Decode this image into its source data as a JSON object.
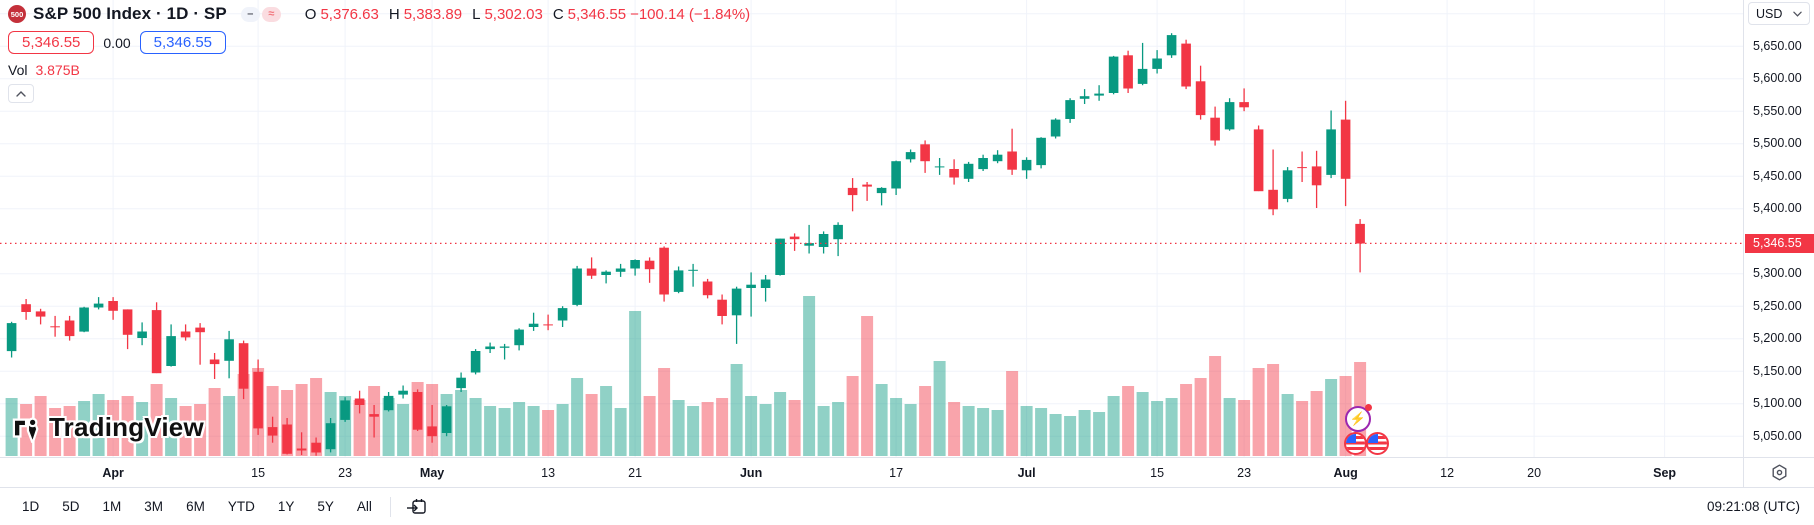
{
  "header": {
    "symbol_badge": "500",
    "title": "S&P 500 Index · 1D · SP",
    "ohlc": {
      "o_label": "O",
      "o": "5,376.63",
      "h_label": "H",
      "h": "5,383.89",
      "l_label": "L",
      "l": "5,302.03",
      "c_label": "C",
      "c": "5,346.55",
      "change": "−100.14 (−1.84%)"
    },
    "sell_price": "5,346.55",
    "spread": "0.00",
    "buy_price": "5,346.55",
    "vol_label": "Vol",
    "vol_value": "3.875B"
  },
  "price_scale": {
    "currency": "USD",
    "tag": "5,346.55"
  },
  "toolbar": {
    "ranges": [
      "1D",
      "5D",
      "1M",
      "3M",
      "6M",
      "YTD",
      "1Y",
      "5Y",
      "All"
    ],
    "clock": "09:21:08 (UTC)"
  },
  "watermark": {
    "text": "TradingView"
  },
  "colors": {
    "up": "#089981",
    "down": "#F23645",
    "vol_up": "rgba(8,153,129,0.45)",
    "vol_down": "rgba(242,54,69,0.45)",
    "grid": "#F0F3FA",
    "last_line": "#F23645",
    "accent_blue": "#2962FF",
    "accent_red": "#F23645"
  },
  "chart_data": {
    "type": "candlestick",
    "symbol": "S&P 500 Index",
    "interval": "1D",
    "exchange": "SP",
    "currency": "USD",
    "last_price": 5346.55,
    "change": -100.14,
    "change_percent": -1.84,
    "volume_label": "3.875B",
    "ylim": [
      5018,
      5721
    ],
    "grid_on": true,
    "price_axis_ticks": [
      {
        "price": 5650,
        "label": "5,650.00"
      },
      {
        "price": 5600,
        "label": "5,600.00"
      },
      {
        "price": 5550,
        "label": "5,550.00"
      },
      {
        "price": 5500,
        "label": "5,500.00"
      },
      {
        "price": 5450,
        "label": "5,450.00"
      },
      {
        "price": 5400,
        "label": "5,400.00"
      },
      {
        "price": 5300,
        "label": "5,300.00"
      },
      {
        "price": 5250,
        "label": "5,250.00"
      },
      {
        "price": 5200,
        "label": "5,200.00"
      },
      {
        "price": 5150,
        "label": "5,150.00"
      },
      {
        "price": 5100,
        "label": "5,100.00"
      },
      {
        "price": 5050,
        "label": "5,050.00"
      }
    ],
    "price_gridlines": [
      5700,
      5650,
      5600,
      5550,
      5500,
      5450,
      5400,
      5300,
      5250,
      5200,
      5150,
      5100,
      5050
    ],
    "time_ticks": [
      {
        "label": "Apr",
        "index": 7,
        "major": true
      },
      {
        "label": "15",
        "index": 17,
        "major": false
      },
      {
        "label": "23",
        "index": 23,
        "major": false
      },
      {
        "label": "May",
        "index": 29,
        "major": true
      },
      {
        "label": "13",
        "index": 37,
        "major": false
      },
      {
        "label": "21",
        "index": 43,
        "major": false
      },
      {
        "label": "Jun",
        "index": 51,
        "major": true
      },
      {
        "label": "17",
        "index": 61,
        "major": false
      },
      {
        "label": "Jul",
        "index": 70,
        "major": true
      },
      {
        "label": "15",
        "index": 79,
        "major": false
      },
      {
        "label": "23",
        "index": 85,
        "major": false
      },
      {
        "label": "Aug",
        "index": 92,
        "major": true
      },
      {
        "label": "12",
        "index": 99,
        "major": false
      },
      {
        "label": "20",
        "index": 105,
        "major": false
      },
      {
        "label": "Sep",
        "index": 114,
        "major": true
      }
    ],
    "candles": [
      [
        "03-20",
        5181,
        5226,
        5171,
        5224,
        58
      ],
      [
        "03-21",
        5253,
        5261,
        5229,
        5241,
        52
      ],
      [
        "03-22",
        5242,
        5246,
        5222,
        5234,
        60
      ],
      [
        "03-25",
        5219,
        5235,
        5203,
        5218,
        48
      ],
      [
        "03-26",
        5228,
        5235,
        5197,
        5204,
        50
      ],
      [
        "03-27",
        5211,
        5249,
        5210,
        5248,
        55
      ],
      [
        "03-28",
        5248,
        5264,
        5245,
        5254,
        62
      ],
      [
        "04-01",
        5258,
        5264,
        5229,
        5243,
        56
      ],
      [
        "04-02",
        5245,
        5245,
        5184,
        5206,
        60
      ],
      [
        "04-03",
        5201,
        5225,
        5190,
        5211,
        54
      ],
      [
        "04-04",
        5244,
        5256,
        5147,
        5147,
        72
      ],
      [
        "04-05",
        5158,
        5222,
        5157,
        5204,
        58
      ],
      [
        "04-08",
        5211,
        5222,
        5197,
        5202,
        50
      ],
      [
        "04-09",
        5217,
        5224,
        5160,
        5210,
        52
      ],
      [
        "04-10",
        5168,
        5178,
        5138,
        5161,
        68
      ],
      [
        "04-11",
        5166,
        5212,
        5139,
        5199,
        60
      ],
      [
        "04-12",
        5193,
        5197,
        5107,
        5123,
        82
      ],
      [
        "04-15",
        5149,
        5168,
        5052,
        5062,
        88
      ],
      [
        "04-16",
        5064,
        5080,
        5040,
        5051,
        70
      ],
      [
        "04-17",
        5068,
        5078,
        5022,
        5023,
        66
      ],
      [
        "04-18",
        5031,
        5056,
        5021,
        5028,
        72
      ],
      [
        "04-19",
        5040,
        5048,
        5020,
        5025,
        78
      ],
      [
        "04-22",
        5030,
        5078,
        5025,
        5070,
        64
      ],
      [
        "04-23",
        5075,
        5110,
        5072,
        5105,
        60
      ],
      [
        "04-24",
        5108,
        5120,
        5085,
        5098,
        56
      ],
      [
        "04-25",
        5084,
        5098,
        5048,
        5080,
        70
      ],
      [
        "04-26",
        5090,
        5118,
        5088,
        5112,
        58
      ],
      [
        "04-29",
        5114,
        5128,
        5108,
        5120,
        52
      ],
      [
        "04-30",
        5118,
        5122,
        5058,
        5060,
        74
      ],
      [
        "05-01",
        5065,
        5098,
        5040,
        5050,
        72
      ],
      [
        "05-02",
        5055,
        5098,
        5050,
        5096,
        62
      ],
      [
        "05-03",
        5124,
        5148,
        5118,
        5140,
        66
      ],
      [
        "05-06",
        5148,
        5184,
        5145,
        5181,
        58
      ],
      [
        "05-07",
        5184,
        5194,
        5178,
        5188,
        50
      ],
      [
        "05-08",
        5186,
        5192,
        5168,
        5188,
        48
      ],
      [
        "05-09",
        5190,
        5216,
        5182,
        5214,
        54
      ],
      [
        "05-10",
        5218,
        5240,
        5212,
        5223,
        50
      ],
      [
        "05-13",
        5222,
        5237,
        5213,
        5221,
        46
      ],
      [
        "05-14",
        5228,
        5250,
        5218,
        5247,
        52
      ],
      [
        "05-15",
        5252,
        5312,
        5250,
        5308,
        78
      ],
      [
        "05-16",
        5308,
        5325,
        5292,
        5297,
        62
      ],
      [
        "05-17",
        5298,
        5305,
        5285,
        5303,
        70
      ],
      [
        "05-20",
        5303,
        5315,
        5295,
        5308,
        48
      ],
      [
        "05-21",
        5308,
        5322,
        5297,
        5321,
        145
      ],
      [
        "05-22",
        5320,
        5325,
        5286,
        5307,
        60
      ],
      [
        "05-23",
        5340,
        5342,
        5257,
        5268,
        88
      ],
      [
        "05-24",
        5272,
        5311,
        5270,
        5305,
        56
      ],
      [
        "05-28",
        5305,
        5315,
        5280,
        5306,
        50
      ],
      [
        "05-29",
        5288,
        5292,
        5262,
        5267,
        54
      ],
      [
        "05-30",
        5260,
        5268,
        5222,
        5235,
        58
      ],
      [
        "05-31",
        5236,
        5280,
        5192,
        5277,
        92
      ],
      [
        "06-03",
        5278,
        5302,
        5234,
        5283,
        60
      ],
      [
        "06-04",
        5278,
        5298,
        5257,
        5291,
        52
      ],
      [
        "06-05",
        5298,
        5354,
        5297,
        5354,
        64
      ],
      [
        "06-06",
        5357,
        5362,
        5335,
        5353,
        56
      ],
      [
        "06-07",
        5343,
        5375,
        5331,
        5347,
        160
      ],
      [
        "06-10",
        5341,
        5365,
        5331,
        5361,
        50
      ],
      [
        "06-11",
        5353,
        5379,
        5327,
        5375,
        54
      ],
      [
        "06-12",
        5432,
        5447,
        5396,
        5421,
        80
      ],
      [
        "06-13",
        5437,
        5441,
        5412,
        5434,
        140
      ],
      [
        "06-14",
        5424,
        5433,
        5405,
        5432,
        72
      ],
      [
        "06-17",
        5431,
        5474,
        5421,
        5473,
        58
      ],
      [
        "06-18",
        5476,
        5491,
        5471,
        5487,
        52
      ],
      [
        "06-20",
        5499,
        5505,
        5455,
        5473,
        70
      ],
      [
        "06-21",
        5464,
        5478,
        5452,
        5465,
        95
      ],
      [
        "06-24",
        5461,
        5476,
        5437,
        5448,
        54
      ],
      [
        "06-25",
        5446,
        5472,
        5441,
        5469,
        50
      ],
      [
        "06-26",
        5461,
        5483,
        5458,
        5478,
        48
      ],
      [
        "06-27",
        5473,
        5490,
        5470,
        5483,
        46
      ],
      [
        "06-28",
        5488,
        5523,
        5452,
        5460,
        85
      ],
      [
        "07-01",
        5459,
        5479,
        5446,
        5475,
        50
      ],
      [
        "07-02",
        5467,
        5510,
        5462,
        5509,
        48
      ],
      [
        "07-03",
        5511,
        5539,
        5508,
        5537,
        42
      ],
      [
        "07-05",
        5538,
        5570,
        5532,
        5567,
        40
      ],
      [
        "07-08",
        5569,
        5584,
        5561,
        5573,
        46
      ],
      [
        "07-09",
        5574,
        5590,
        5566,
        5577,
        44
      ],
      [
        "07-10",
        5578,
        5635,
        5576,
        5634,
        60
      ],
      [
        "07-11",
        5636,
        5643,
        5578,
        5585,
        70
      ],
      [
        "07-12",
        5592,
        5655,
        5590,
        5615,
        64
      ],
      [
        "07-15",
        5615,
        5644,
        5608,
        5631,
        55
      ],
      [
        "07-16",
        5636,
        5670,
        5632,
        5667,
        58
      ],
      [
        "07-17",
        5654,
        5660,
        5584,
        5588,
        72
      ],
      [
        "07-18",
        5596,
        5620,
        5537,
        5544,
        78
      ],
      [
        "07-19",
        5540,
        5557,
        5497,
        5505,
        100
      ],
      [
        "07-22",
        5522,
        5570,
        5520,
        5564,
        58
      ],
      [
        "07-23",
        5564,
        5585,
        5550,
        5556,
        56
      ],
      [
        "07-24",
        5522,
        5528,
        5427,
        5427,
        88
      ],
      [
        "07-25",
        5429,
        5491,
        5390,
        5399,
        92
      ],
      [
        "07-26",
        5415,
        5464,
        5410,
        5459,
        62
      ],
      [
        "07-29",
        5464,
        5488,
        5441,
        5463,
        55
      ],
      [
        "07-30",
        5465,
        5489,
        5401,
        5436,
        65
      ],
      [
        "07-31",
        5452,
        5551,
        5447,
        5522,
        77
      ],
      [
        "08-01",
        5537,
        5566,
        5404,
        5446,
        80
      ],
      [
        "08-02",
        5376.63,
        5383.89,
        5302.03,
        5346.55,
        94
      ]
    ]
  }
}
